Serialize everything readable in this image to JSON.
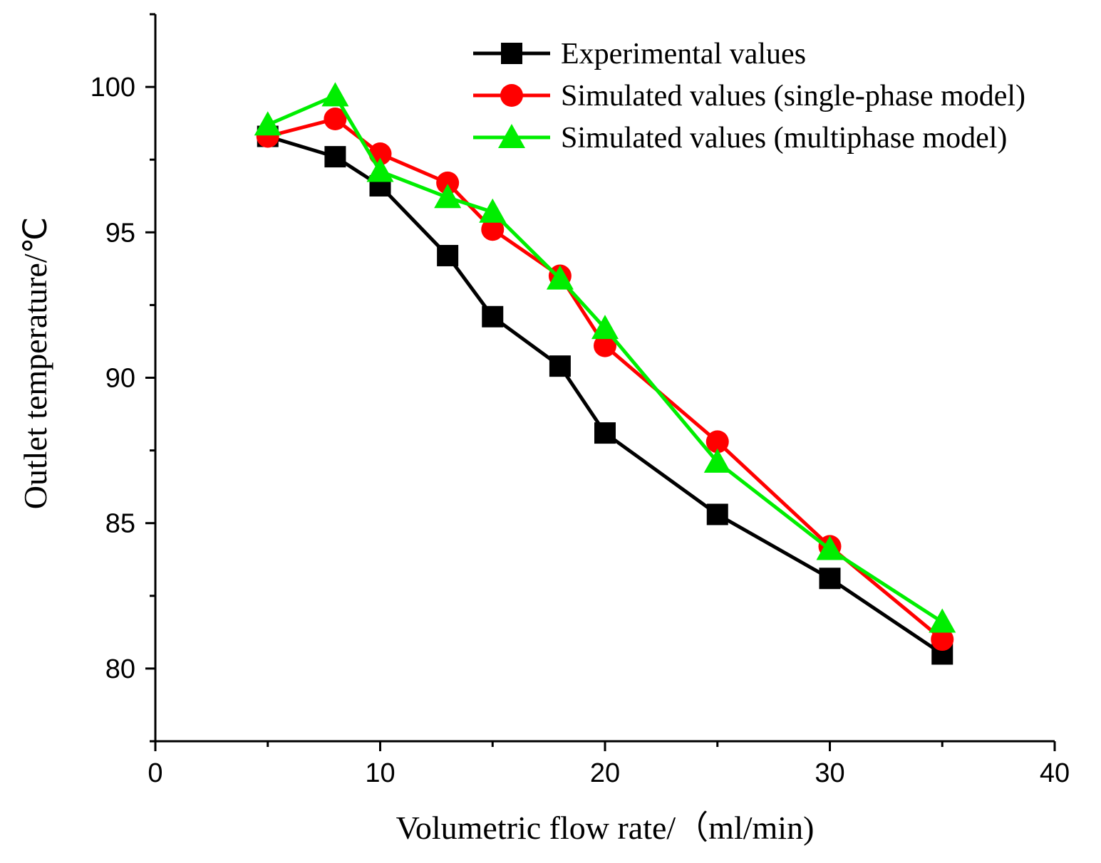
{
  "chart_data": {
    "type": "line",
    "title": "",
    "xlabel": "Volumetric flow rate/（ml/min)",
    "ylabel": "Outlet temperature/℃",
    "xlim": [
      0,
      40
    ],
    "ylim": [
      77.5,
      102.5
    ],
    "x_ticks": [
      0,
      10,
      20,
      30,
      40
    ],
    "y_ticks": [
      80,
      85,
      90,
      95,
      100
    ],
    "x_tick_labels": [
      "0",
      "10",
      "20",
      "30",
      "40"
    ],
    "y_tick_labels": [
      "80",
      "85",
      "90",
      "95",
      "100"
    ],
    "legend_position": "top-right",
    "series": [
      {
        "name": "Experimental values",
        "color": "#000000",
        "marker": "square",
        "x": [
          5,
          8,
          10,
          13,
          15,
          18,
          20,
          25,
          30,
          35
        ],
        "values": [
          98.3,
          97.6,
          96.6,
          94.2,
          92.1,
          90.4,
          88.1,
          85.3,
          83.1,
          80.5
        ]
      },
      {
        "name": "Simulated values (single-phase model)",
        "color": "#ff0000",
        "marker": "circle",
        "x": [
          5,
          8,
          10,
          13,
          15,
          18,
          20,
          25,
          30,
          35
        ],
        "values": [
          98.3,
          98.9,
          97.7,
          96.7,
          95.1,
          93.5,
          91.1,
          87.8,
          84.2,
          81.0
        ]
      },
      {
        "name": "Simulated values (multiphase model)",
        "color": "#00ee00",
        "marker": "triangle",
        "x": [
          5,
          8,
          10,
          13,
          15,
          18,
          20,
          25,
          30,
          35
        ],
        "values": [
          98.7,
          99.7,
          97.1,
          96.2,
          95.7,
          93.4,
          91.7,
          87.1,
          84.1,
          81.6
        ]
      }
    ]
  }
}
